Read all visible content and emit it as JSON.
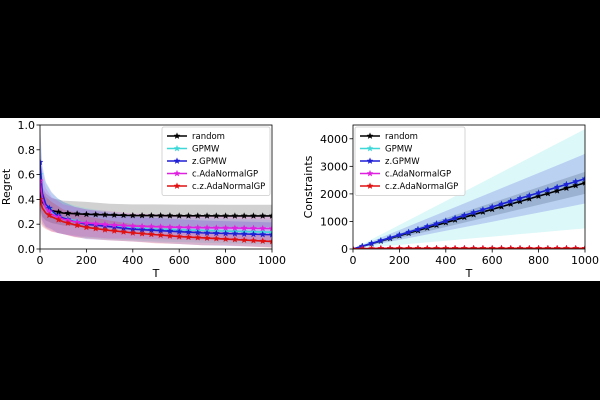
{
  "chart_data": [
    {
      "type": "line",
      "xlabel": "T",
      "ylabel": "Regret",
      "xlim": [
        0,
        1000
      ],
      "ylim": [
        0,
        1.0
      ],
      "xticks": [
        0,
        200,
        400,
        600,
        800,
        1000
      ],
      "yticks": [
        0.0,
        0.2,
        0.4,
        0.6,
        0.8,
        1.0
      ],
      "ytick_labels": [
        "0.0",
        "0.2",
        "0.4",
        "0.6",
        "0.8",
        "1.0"
      ],
      "legend_position": "top-right",
      "grid": false,
      "series": [
        {
          "name": "random",
          "color": "#000000",
          "x": [
            0,
            10,
            25,
            50,
            75,
            100,
            150,
            200,
            300,
            400,
            500,
            600,
            700,
            800,
            900,
            1000
          ],
          "y": [
            0.45,
            0.38,
            0.34,
            0.31,
            0.3,
            0.29,
            0.285,
            0.28,
            0.275,
            0.27,
            0.27,
            0.268,
            0.268,
            0.267,
            0.267,
            0.267
          ],
          "band": [
            0.13,
            0.12,
            0.11,
            0.1,
            0.1,
            0.1,
            0.1,
            0.1,
            0.09,
            0.09,
            0.09,
            0.09,
            0.09,
            0.09,
            0.09,
            0.09
          ]
        },
        {
          "name": "GPMW",
          "color": "#3fd8d8",
          "x": [
            0,
            10,
            25,
            50,
            75,
            100,
            150,
            200,
            300,
            400,
            500,
            600,
            700,
            800,
            900,
            1000
          ],
          "y": [
            0.6,
            0.42,
            0.35,
            0.3,
            0.27,
            0.25,
            0.23,
            0.21,
            0.19,
            0.17,
            0.16,
            0.155,
            0.15,
            0.145,
            0.14,
            0.135
          ],
          "band": [
            0.3,
            0.22,
            0.18,
            0.15,
            0.14,
            0.13,
            0.12,
            0.12,
            0.11,
            0.1,
            0.1,
            0.1,
            0.1,
            0.1,
            0.1,
            0.1
          ]
        },
        {
          "name": "z.GPMW",
          "color": "#1f1fd6",
          "x": [
            0,
            10,
            25,
            50,
            75,
            100,
            150,
            200,
            300,
            400,
            500,
            600,
            700,
            800,
            900,
            1000
          ],
          "y": [
            0.7,
            0.45,
            0.36,
            0.31,
            0.27,
            0.25,
            0.22,
            0.2,
            0.18,
            0.16,
            0.15,
            0.14,
            0.13,
            0.125,
            0.12,
            0.115
          ],
          "band": [
            0.3,
            0.22,
            0.18,
            0.15,
            0.14,
            0.13,
            0.12,
            0.12,
            0.11,
            0.1,
            0.1,
            0.1,
            0.1,
            0.1,
            0.1,
            0.1
          ]
        },
        {
          "name": "c.AdaNormalGP",
          "color": "#e020e0",
          "x": [
            0,
            10,
            25,
            50,
            75,
            100,
            150,
            200,
            300,
            400,
            500,
            600,
            700,
            800,
            900,
            1000
          ],
          "y": [
            0.55,
            0.4,
            0.33,
            0.28,
            0.26,
            0.24,
            0.22,
            0.21,
            0.195,
            0.185,
            0.18,
            0.175,
            0.172,
            0.17,
            0.168,
            0.165
          ],
          "band": [
            0.25,
            0.2,
            0.16,
            0.14,
            0.13,
            0.12,
            0.12,
            0.11,
            0.11,
            0.1,
            0.1,
            0.1,
            0.1,
            0.1,
            0.1,
            0.1
          ]
        },
        {
          "name": "c.z.AdaNormalGP",
          "color": "#e01010",
          "x": [
            0,
            10,
            25,
            50,
            75,
            100,
            150,
            200,
            300,
            400,
            500,
            600,
            700,
            800,
            900,
            1000
          ],
          "y": [
            0.4,
            0.33,
            0.29,
            0.26,
            0.24,
            0.22,
            0.195,
            0.175,
            0.15,
            0.13,
            0.115,
            0.1,
            0.09,
            0.08,
            0.07,
            0.06
          ],
          "band": [
            0.18,
            0.15,
            0.13,
            0.12,
            0.11,
            0.1,
            0.1,
            0.09,
            0.08,
            0.07,
            0.07,
            0.06,
            0.06,
            0.05,
            0.05,
            0.05
          ]
        }
      ]
    },
    {
      "type": "line",
      "xlabel": "T",
      "ylabel": "Constraints",
      "xlim": [
        0,
        1000
      ],
      "ylim": [
        0,
        4500
      ],
      "xticks": [
        0,
        200,
        400,
        600,
        800,
        1000
      ],
      "yticks": [
        0,
        1000,
        2000,
        3000,
        4000
      ],
      "ytick_labels": [
        "0",
        "1000",
        "2000",
        "3000",
        "4000"
      ],
      "legend_position": "top-left",
      "grid": false,
      "series": [
        {
          "name": "random",
          "color": "#000000",
          "x": [
            0,
            100,
            200,
            300,
            400,
            500,
            600,
            700,
            800,
            900,
            1000
          ],
          "y": [
            0,
            240,
            480,
            720,
            960,
            1200,
            1440,
            1680,
            1920,
            2160,
            2400
          ],
          "band": [
            0,
            40,
            80,
            120,
            160,
            200,
            240,
            280,
            320,
            360,
            400
          ]
        },
        {
          "name": "GPMW",
          "color": "#3fd8d8",
          "x": [
            0,
            100,
            200,
            300,
            400,
            500,
            600,
            700,
            800,
            900,
            1000
          ],
          "y": [
            0,
            255,
            510,
            765,
            1020,
            1275,
            1530,
            1785,
            2040,
            2295,
            2550
          ],
          "band": [
            0,
            180,
            360,
            540,
            720,
            900,
            1080,
            1260,
            1440,
            1620,
            1800
          ]
        },
        {
          "name": "z.GPMW",
          "color": "#1f1fd6",
          "x": [
            0,
            100,
            200,
            300,
            400,
            500,
            600,
            700,
            800,
            900,
            1000
          ],
          "y": [
            0,
            255,
            510,
            765,
            1020,
            1275,
            1530,
            1785,
            2040,
            2295,
            2550
          ],
          "band": [
            0,
            90,
            180,
            270,
            360,
            450,
            540,
            630,
            720,
            810,
            900
          ]
        },
        {
          "name": "c.AdaNormalGP",
          "color": "#e020e0",
          "x": [
            0,
            100,
            200,
            300,
            400,
            500,
            600,
            700,
            800,
            900,
            1000
          ],
          "y": [
            0,
            20,
            25,
            25,
            25,
            25,
            25,
            25,
            25,
            25,
            25
          ],
          "band": [
            0,
            10,
            10,
            10,
            10,
            10,
            10,
            10,
            10,
            10,
            10
          ]
        },
        {
          "name": "c.z.AdaNormalGP",
          "color": "#e01010",
          "x": [
            0,
            100,
            200,
            300,
            400,
            500,
            600,
            700,
            800,
            900,
            1000
          ],
          "y": [
            0,
            20,
            25,
            25,
            25,
            25,
            25,
            25,
            25,
            25,
            25
          ],
          "band": [
            0,
            10,
            10,
            10,
            10,
            10,
            10,
            10,
            10,
            10,
            10
          ]
        }
      ]
    }
  ]
}
